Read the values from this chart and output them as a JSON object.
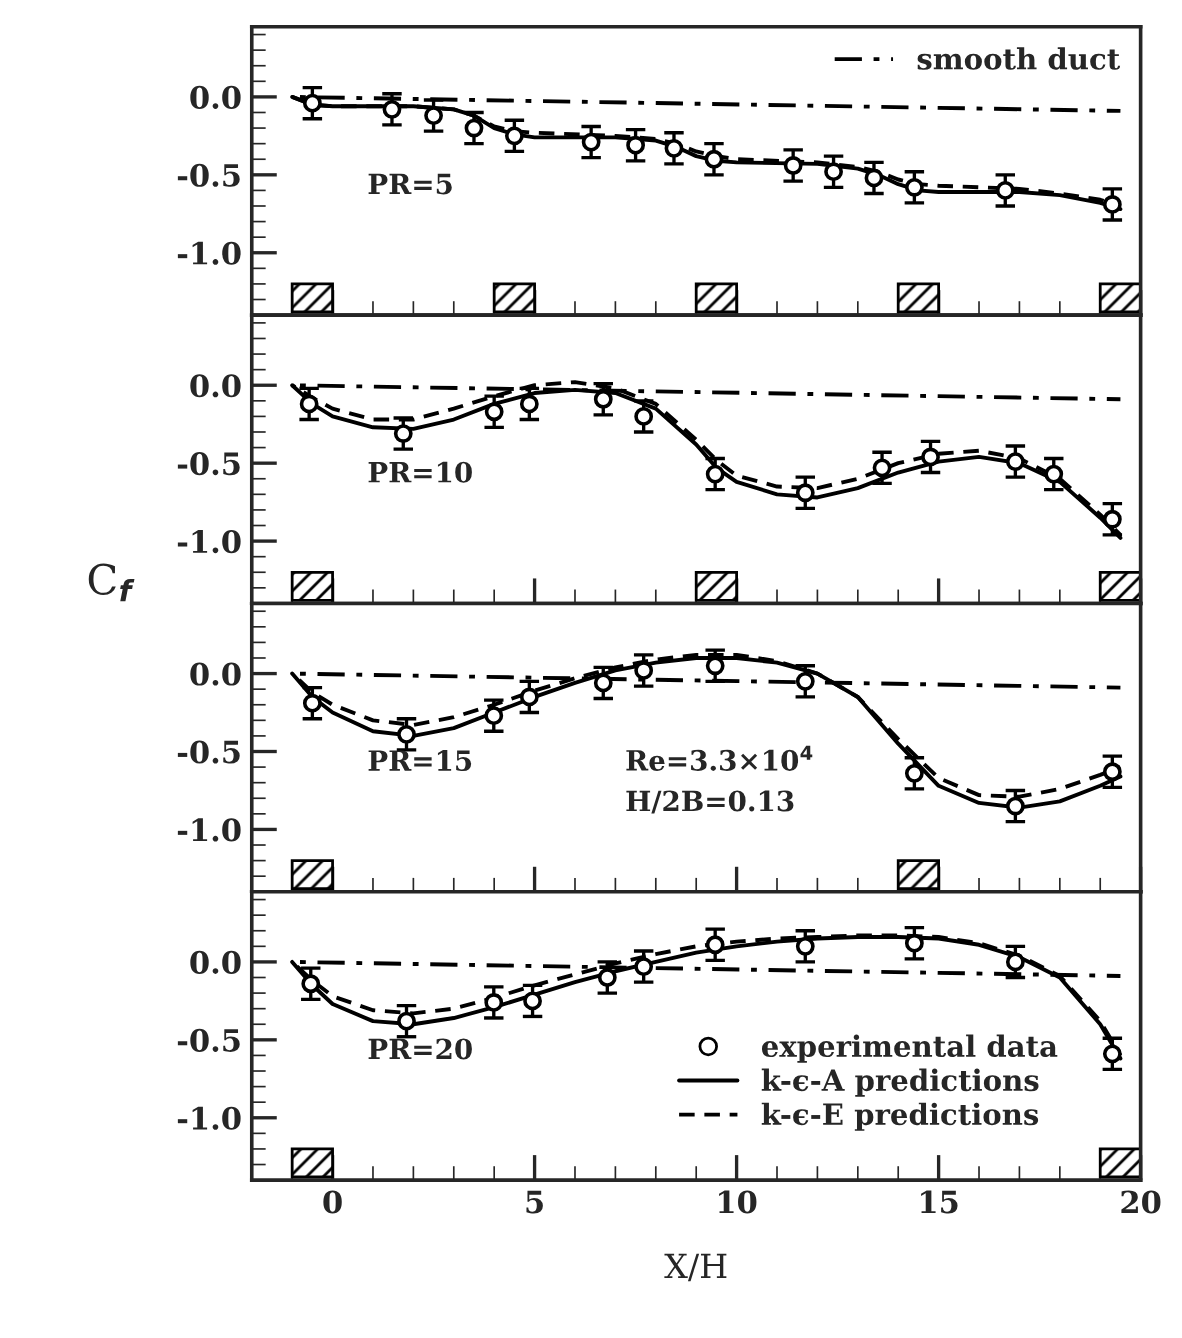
{
  "chart_data": [
    {
      "type": "line",
      "xlim": [
        -2,
        20
      ],
      "ylim": [
        -1.4,
        0.45
      ],
      "xticks": [
        0,
        5,
        10,
        15,
        20
      ],
      "yticks": [
        {
          "value": 0,
          "label": "0.0"
        },
        {
          "value": -0.5,
          "label": "-0.5"
        },
        {
          "value": -1.0,
          "label": "-1.0"
        }
      ],
      "tick_labels": "y",
      "legend": "top right",
      "grid": false,
      "annotations": [
        "PR=5"
      ],
      "series": [
        {
          "name": "smooth duct",
          "color": "#000000",
          "line_style": "dashdot",
          "x": [
            -1,
            19.5
          ],
          "values": [
            0,
            -0.09
          ]
        },
        {
          "type": "scatter",
          "marker": "circle",
          "color": "#000000",
          "x": [
            -0.5,
            1.47,
            2.5,
            3.5,
            4.5,
            6.4,
            7.5,
            8.45,
            9.44,
            11.4,
            12.4,
            13.4,
            14.4,
            16.65,
            19.3
          ],
          "values": [
            -0.04,
            -0.08,
            -0.12,
            -0.2,
            -0.25,
            -0.29,
            -0.31,
            -0.33,
            -0.4,
            -0.44,
            -0.48,
            -0.52,
            -0.58,
            -0.6,
            -0.69
          ],
          "errors": [
            0.1,
            0.1,
            0.1,
            0.1,
            0.1,
            0.1,
            0.1,
            0.1,
            0.1,
            0.1,
            0.1,
            0.1,
            0.1,
            0.1,
            0.1
          ]
        },
        {
          "color": "#000000",
          "line_style": "solid",
          "x": [
            -1,
            -0.5,
            0,
            2,
            3,
            3.5,
            4,
            4.5,
            5,
            7,
            8,
            8.5,
            9,
            9.5,
            10,
            12,
            13,
            13.5,
            14,
            14.5,
            15,
            17,
            18,
            19,
            19.5
          ],
          "values": [
            0,
            -0.05,
            -0.06,
            -0.06,
            -0.08,
            -0.12,
            -0.2,
            -0.24,
            -0.26,
            -0.26,
            -0.28,
            -0.32,
            -0.38,
            -0.41,
            -0.42,
            -0.43,
            -0.46,
            -0.5,
            -0.56,
            -0.6,
            -0.61,
            -0.61,
            -0.63,
            -0.68,
            -0.72
          ]
        },
        {
          "color": "#000000",
          "line_style": "dashed",
          "x": [
            -1,
            -0.5,
            0,
            2,
            3,
            3.5,
            4,
            4.5,
            5,
            7,
            8,
            8.5,
            9,
            9.5,
            10,
            12,
            13,
            13.5,
            14,
            14.5,
            15,
            17,
            18,
            19,
            19.5
          ],
          "values": [
            0,
            -0.05,
            -0.06,
            -0.06,
            -0.08,
            -0.12,
            -0.19,
            -0.22,
            -0.23,
            -0.25,
            -0.27,
            -0.3,
            -0.35,
            -0.38,
            -0.4,
            -0.42,
            -0.45,
            -0.48,
            -0.53,
            -0.56,
            -0.57,
            -0.59,
            -0.62,
            -0.66,
            -0.7
          ]
        }
      ]
    },
    {
      "type": "line",
      "xlim": [
        -2,
        20
      ],
      "ylim": [
        -1.4,
        0.45
      ],
      "xticks": [
        0,
        5,
        10,
        15,
        20
      ],
      "yticks": [
        {
          "value": 0,
          "label": "0.0"
        },
        {
          "value": -0.5,
          "label": "-0.5"
        },
        {
          "value": -1.0,
          "label": "-1.0"
        }
      ],
      "tick_labels": "y",
      "grid": false,
      "ylabel": "C$_{f}$",
      "annotations": [
        "PR=10"
      ],
      "series": [
        {
          "color": "#000000",
          "line_style": "dashdot",
          "x": [
            -1,
            19.5
          ],
          "values": [
            0,
            -0.09
          ]
        },
        {
          "type": "scatter",
          "marker": "circle",
          "color": "#000000",
          "x": [
            -0.58,
            1.75,
            4.0,
            4.87,
            6.7,
            7.7,
            9.47,
            11.7,
            13.6,
            14.8,
            16.9,
            17.85,
            19.3
          ],
          "values": [
            -0.12,
            -0.31,
            -0.17,
            -0.12,
            -0.09,
            -0.2,
            -0.57,
            -0.69,
            -0.53,
            -0.46,
            -0.49,
            -0.57,
            -0.86
          ],
          "errors": [
            0.1,
            0.1,
            0.1,
            0.1,
            0.1,
            0.1,
            0.1,
            0.1,
            0.1,
            0.1,
            0.1,
            0.1,
            0.1
          ]
        },
        {
          "color": "#000000",
          "line_style": "solid",
          "x": [
            -1,
            -0.5,
            0,
            1,
            2,
            3,
            4,
            5,
            6,
            7,
            8,
            9,
            9.5,
            10,
            11,
            12,
            13,
            14,
            15,
            16,
            17,
            18,
            19,
            19.5
          ],
          "values": [
            0,
            -0.12,
            -0.2,
            -0.27,
            -0.28,
            -0.22,
            -0.12,
            -0.05,
            -0.03,
            -0.05,
            -0.15,
            -0.38,
            -0.53,
            -0.62,
            -0.7,
            -0.72,
            -0.66,
            -0.56,
            -0.49,
            -0.46,
            -0.5,
            -0.62,
            -0.85,
            -0.98
          ]
        },
        {
          "color": "#000000",
          "line_style": "dashed",
          "x": [
            -1,
            -0.5,
            0,
            1,
            2,
            3,
            4,
            5,
            6,
            7,
            8,
            9,
            9.5,
            10,
            11,
            12,
            13,
            14,
            15,
            16,
            17,
            18,
            19,
            19.5
          ],
          "values": [
            0,
            -0.08,
            -0.15,
            -0.22,
            -0.22,
            -0.15,
            -0.07,
            0.0,
            0.02,
            -0.02,
            -0.12,
            -0.35,
            -0.48,
            -0.58,
            -0.65,
            -0.66,
            -0.6,
            -0.5,
            -0.44,
            -0.42,
            -0.47,
            -0.6,
            -0.83,
            -0.96
          ]
        }
      ]
    },
    {
      "type": "line",
      "xlim": [
        -2,
        20
      ],
      "ylim": [
        -1.4,
        0.45
      ],
      "xticks": [
        0,
        5,
        10,
        15,
        20
      ],
      "yticks": [
        {
          "value": 0,
          "label": "0.0"
        },
        {
          "value": -0.5,
          "label": "-0.5"
        },
        {
          "value": -1.0,
          "label": "-1.0"
        }
      ],
      "tick_labels": "y",
      "grid": false,
      "annotations": [
        "PR=15",
        "Re=3.3×10$^{4}$",
        "H/2B=0.13"
      ],
      "series": [
        {
          "color": "#000000",
          "line_style": "dashdot",
          "x": [
            -1,
            19.5
          ],
          "values": [
            0,
            -0.09
          ]
        },
        {
          "type": "scatter",
          "marker": "circle",
          "color": "#000000",
          "x": [
            -0.5,
            1.83,
            3.99,
            4.87,
            6.7,
            7.7,
            9.47,
            11.7,
            14.4,
            16.9,
            19.3
          ],
          "values": [
            -0.19,
            -0.39,
            -0.27,
            -0.15,
            -0.06,
            0.02,
            0.05,
            -0.05,
            -0.64,
            -0.85,
            -0.63
          ],
          "errors": [
            0.1,
            0.1,
            0.1,
            0.1,
            0.1,
            0.1,
            0.1,
            0.1,
            0.1,
            0.1,
            0.1
          ]
        },
        {
          "color": "#000000",
          "line_style": "solid",
          "x": [
            -1,
            -0.5,
            0,
            1,
            2,
            3,
            4,
            5,
            6,
            7,
            8,
            9,
            10,
            11,
            12,
            13,
            14,
            15,
            16,
            17,
            18,
            19,
            19.5
          ],
          "values": [
            0,
            -0.15,
            -0.25,
            -0.37,
            -0.4,
            -0.35,
            -0.25,
            -0.15,
            -0.06,
            0.02,
            0.07,
            0.1,
            0.1,
            0.07,
            0.0,
            -0.15,
            -0.45,
            -0.72,
            -0.83,
            -0.86,
            -0.82,
            -0.72,
            -0.66
          ]
        },
        {
          "color": "#000000",
          "line_style": "dashed",
          "x": [
            -1,
            -0.5,
            0,
            1,
            2,
            3,
            4,
            5,
            6,
            7,
            8,
            9,
            10,
            11,
            12,
            13,
            14,
            15,
            16,
            17,
            18,
            19,
            19.5
          ],
          "values": [
            0,
            -0.12,
            -0.2,
            -0.3,
            -0.33,
            -0.28,
            -0.2,
            -0.11,
            -0.03,
            0.04,
            0.09,
            0.12,
            0.12,
            0.08,
            0.0,
            -0.15,
            -0.42,
            -0.67,
            -0.78,
            -0.79,
            -0.74,
            -0.65,
            -0.6
          ]
        }
      ]
    },
    {
      "type": "line",
      "xlim": [
        -2,
        20
      ],
      "ylim": [
        -1.4,
        0.45
      ],
      "xticks": [
        0,
        5,
        10,
        15,
        20
      ],
      "yticks": [
        {
          "value": 0,
          "label": "0.0"
        },
        {
          "value": -0.5,
          "label": "-0.5"
        },
        {
          "value": -1.0,
          "label": "-1.0"
        }
      ],
      "legend": "bottom right",
      "grid": false,
      "xlabel": "X/H",
      "annotations": [
        "PR=20"
      ],
      "series": [
        {
          "color": "#000000",
          "line_style": "dashdot",
          "x": [
            -1,
            19.5
          ],
          "values": [
            0,
            -0.09
          ]
        },
        {
          "type": "scatter",
          "name": "experimental data",
          "marker": "circle",
          "color": "#000000",
          "x": [
            -0.54,
            1.83,
            3.99,
            4.95,
            6.8,
            7.7,
            9.47,
            11.7,
            14.4,
            16.9,
            19.3
          ],
          "values": [
            -0.14,
            -0.38,
            -0.26,
            -0.25,
            -0.1,
            -0.03,
            0.11,
            0.1,
            0.12,
            0.0,
            -0.59
          ],
          "errors": [
            0.1,
            0.1,
            0.1,
            0.1,
            0.1,
            0.1,
            0.1,
            0.1,
            0.1,
            0.1,
            0.1
          ]
        },
        {
          "name": "k-ϵ-A predictions",
          "color": "#000000",
          "line_style": "solid",
          "x": [
            -1,
            -0.5,
            0,
            1,
            2,
            3,
            4,
            5,
            6,
            7,
            8,
            9,
            10,
            11,
            12,
            13,
            14,
            15,
            16,
            17,
            18,
            19,
            19.5
          ],
          "values": [
            0,
            -0.15,
            -0.27,
            -0.38,
            -0.4,
            -0.36,
            -0.29,
            -0.21,
            -0.13,
            -0.06,
            0.0,
            0.06,
            0.1,
            0.13,
            0.15,
            0.16,
            0.16,
            0.15,
            0.11,
            0.03,
            -0.1,
            -0.4,
            -0.62
          ]
        },
        {
          "name": "k-ϵ-E predictions",
          "color": "#000000",
          "line_style": "dashed",
          "x": [
            -1,
            -0.5,
            0,
            1,
            2,
            3,
            4,
            5,
            6,
            7,
            8,
            9,
            10,
            11,
            12,
            13,
            14,
            15,
            16,
            17,
            18,
            19,
            19.5
          ],
          "values": [
            0,
            -0.12,
            -0.22,
            -0.31,
            -0.33,
            -0.3,
            -0.23,
            -0.15,
            -0.08,
            -0.01,
            0.05,
            0.1,
            0.13,
            0.15,
            0.16,
            0.17,
            0.17,
            0.16,
            0.12,
            0.04,
            -0.09,
            -0.38,
            -0.6
          ]
        }
      ]
    }
  ]
}
